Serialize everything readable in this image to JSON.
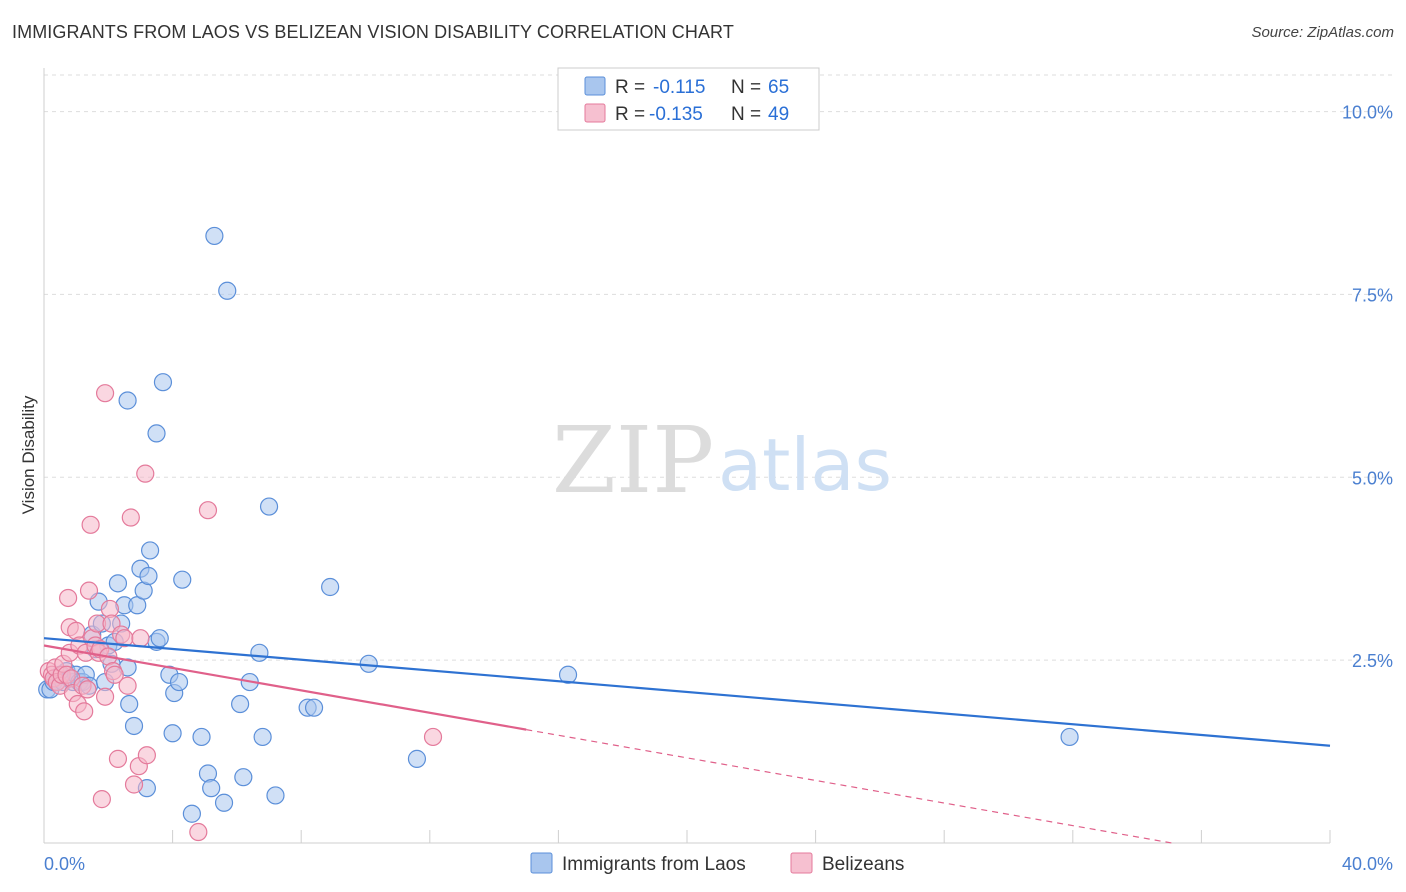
{
  "title": "IMMIGRANTS FROM LAOS VS BELIZEAN VISION DISABILITY CORRELATION CHART",
  "source": "Source: ZipAtlas.com",
  "watermark": {
    "zip": "ZIP",
    "atlas": "atlas"
  },
  "legend": {
    "rows": [
      {
        "r_label": "R =",
        "r_value": "-0.115",
        "n_label": "N =",
        "n_value": "65"
      },
      {
        "r_label": "R =",
        "r_value": "-0.135",
        "n_label": "N =",
        "n_value": "49"
      }
    ]
  },
  "colors": {
    "blue_fill": "#a9c6ee",
    "blue_stroke": "#5b8fd9",
    "blue_line": "#2e72d2",
    "pink_fill": "#f6b6c9",
    "pink_stroke": "#e47a9b",
    "pink_line": "#e0608a",
    "grid": "#dddddd",
    "axis_text": "#4a7fd0"
  },
  "chart_data": {
    "type": "scatter",
    "title": "IMMIGRANTS FROM LAOS VS BELIZEAN VISION DISABILITY CORRELATION CHART",
    "xlabel": "",
    "ylabel": "Vision Disability",
    "xlim": [
      0,
      40
    ],
    "ylim": [
      0,
      10.5
    ],
    "x_tick_labels": [
      "0.0%",
      "40.0%"
    ],
    "y_ticks": [
      2.5,
      5.0,
      7.5,
      10.0
    ],
    "y_tick_labels": [
      "2.5%",
      "5.0%",
      "7.5%",
      "10.0%"
    ],
    "series": [
      {
        "name": "Immigrants from Laos",
        "r": -0.115,
        "n": 65,
        "trend": {
          "x": [
            0,
            40
          ],
          "y": [
            2.8,
            1.33
          ]
        },
        "points": [
          [
            0.1,
            2.1
          ],
          [
            0.2,
            2.1
          ],
          [
            0.3,
            2.2
          ],
          [
            0.4,
            2.2
          ],
          [
            0.5,
            2.3
          ],
          [
            0.6,
            2.2
          ],
          [
            0.7,
            2.35
          ],
          [
            0.8,
            2.25
          ],
          [
            0.9,
            2.2
          ],
          [
            1.0,
            2.3
          ],
          [
            1.1,
            2.2
          ],
          [
            1.2,
            2.2
          ],
          [
            1.3,
            2.3
          ],
          [
            1.4,
            2.15
          ],
          [
            1.5,
            2.85
          ],
          [
            1.6,
            2.65
          ],
          [
            1.7,
            3.3
          ],
          [
            1.8,
            3.0
          ],
          [
            1.9,
            2.2
          ],
          [
            2.0,
            2.7
          ],
          [
            2.1,
            2.45
          ],
          [
            2.2,
            2.75
          ],
          [
            2.3,
            3.55
          ],
          [
            2.4,
            3.0
          ],
          [
            2.5,
            3.25
          ],
          [
            2.6,
            2.4
          ],
          [
            2.6,
            6.05
          ],
          [
            2.65,
            1.9
          ],
          [
            2.8,
            1.6
          ],
          [
            2.9,
            3.25
          ],
          [
            3.0,
            3.75
          ],
          [
            3.1,
            3.45
          ],
          [
            3.2,
            0.75
          ],
          [
            3.25,
            3.65
          ],
          [
            3.3,
            4.0
          ],
          [
            3.5,
            5.6
          ],
          [
            3.5,
            2.75
          ],
          [
            3.6,
            2.8
          ],
          [
            3.7,
            6.3
          ],
          [
            3.9,
            2.3
          ],
          [
            4.0,
            1.5
          ],
          [
            4.05,
            2.05
          ],
          [
            4.2,
            2.2
          ],
          [
            4.3,
            3.6
          ],
          [
            4.6,
            0.4
          ],
          [
            4.9,
            1.45
          ],
          [
            5.1,
            0.95
          ],
          [
            5.2,
            0.75
          ],
          [
            5.3,
            8.3
          ],
          [
            5.6,
            0.55
          ],
          [
            5.7,
            7.55
          ],
          [
            6.1,
            1.9
          ],
          [
            6.2,
            0.9
          ],
          [
            6.4,
            2.2
          ],
          [
            6.7,
            2.6
          ],
          [
            6.8,
            1.45
          ],
          [
            7.0,
            4.6
          ],
          [
            7.2,
            0.65
          ],
          [
            8.2,
            1.85
          ],
          [
            8.4,
            1.85
          ],
          [
            8.9,
            3.5
          ],
          [
            10.1,
            2.45
          ],
          [
            11.6,
            1.15
          ],
          [
            16.3,
            2.3
          ],
          [
            31.9,
            1.45
          ]
        ]
      },
      {
        "name": "Belizeans",
        "r": -0.135,
        "n": 49,
        "trend": {
          "x": [
            0,
            15
          ],
          "y": [
            2.7,
            1.55
          ]
        },
        "trend_dashed": {
          "x": [
            15,
            40
          ],
          "y": [
            1.55,
            -0.38
          ]
        },
        "points": [
          [
            0.15,
            2.35
          ],
          [
            0.25,
            2.3
          ],
          [
            0.3,
            2.25
          ],
          [
            0.35,
            2.4
          ],
          [
            0.4,
            2.2
          ],
          [
            0.5,
            2.15
          ],
          [
            0.55,
            2.3
          ],
          [
            0.6,
            2.45
          ],
          [
            0.7,
            2.3
          ],
          [
            0.75,
            3.35
          ],
          [
            0.8,
            2.6
          ],
          [
            0.8,
            2.95
          ],
          [
            0.85,
            2.25
          ],
          [
            0.9,
            2.05
          ],
          [
            1.0,
            2.9
          ],
          [
            1.05,
            1.9
          ],
          [
            1.1,
            2.7
          ],
          [
            1.2,
            2.15
          ],
          [
            1.25,
            1.8
          ],
          [
            1.3,
            2.6
          ],
          [
            1.35,
            2.1
          ],
          [
            1.4,
            3.45
          ],
          [
            1.45,
            4.35
          ],
          [
            1.5,
            2.8
          ],
          [
            1.6,
            2.7
          ],
          [
            1.65,
            3.0
          ],
          [
            1.7,
            2.6
          ],
          [
            1.75,
            2.65
          ],
          [
            1.8,
            0.6
          ],
          [
            1.9,
            2.0
          ],
          [
            1.9,
            6.15
          ],
          [
            2.0,
            2.55
          ],
          [
            2.05,
            3.2
          ],
          [
            2.1,
            3.0
          ],
          [
            2.15,
            2.35
          ],
          [
            2.2,
            2.3
          ],
          [
            2.3,
            1.15
          ],
          [
            2.4,
            2.85
          ],
          [
            2.5,
            2.8
          ],
          [
            2.6,
            2.15
          ],
          [
            2.7,
            4.45
          ],
          [
            2.8,
            0.8
          ],
          [
            2.95,
            1.05
          ],
          [
            3.0,
            2.8
          ],
          [
            3.15,
            5.05
          ],
          [
            3.2,
            1.2
          ],
          [
            4.8,
            0.15
          ],
          [
            5.1,
            4.55
          ],
          [
            12.1,
            1.45
          ]
        ]
      }
    ]
  }
}
